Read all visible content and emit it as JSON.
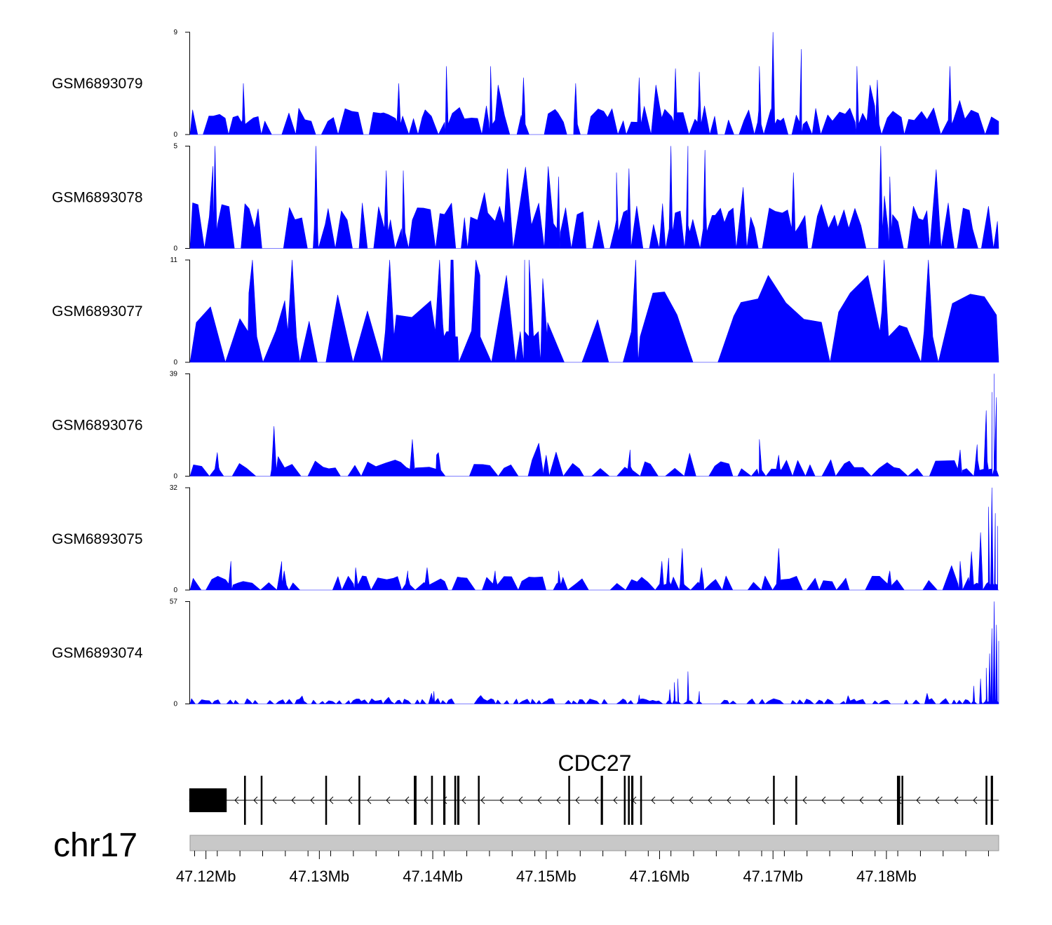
{
  "chart_data": {
    "type": "area",
    "chromosome": "chr17",
    "region_start": 47.1186,
    "region_end": 47.1899,
    "x_units": "Mb",
    "xticks": [
      47.12,
      47.13,
      47.14,
      47.15,
      47.16,
      47.17,
      47.18
    ],
    "xtick_labels": [
      "47.12Mb",
      "47.13Mb",
      "47.14Mb",
      "47.15Mb",
      "47.16Mb",
      "47.17Mb",
      "47.18Mb"
    ],
    "fill_color": "#0000ff",
    "tracks": [
      {
        "name": "GSM6893079",
        "ymin": 0,
        "ymax": 9,
        "ymin_label": "0",
        "ymax_label": "9",
        "baseline": 1.8,
        "spacing": 0.00045,
        "peak_prob": 0.62,
        "tall_prob": 0.03,
        "peaks": [
          [
            47.1233,
            4.5
          ],
          [
            47.137,
            4.5
          ],
          [
            47.1412,
            6
          ],
          [
            47.1451,
            6
          ],
          [
            47.148,
            5
          ],
          [
            47.1526,
            4.5
          ],
          [
            47.1582,
            5
          ],
          [
            47.1614,
            5.8
          ],
          [
            47.1635,
            5.5
          ],
          [
            47.1688,
            6
          ],
          [
            47.17,
            9
          ],
          [
            47.1725,
            7.5
          ],
          [
            47.1774,
            6
          ],
          [
            47.1792,
            4.8
          ],
          [
            47.1856,
            6
          ]
        ]
      },
      {
        "name": "GSM6893078",
        "ymin": 0,
        "ymax": 5,
        "ymin_label": "0",
        "ymax_label": "5",
        "baseline": 1.6,
        "spacing": 0.00045,
        "peak_prob": 0.6,
        "tall_prob": 0.04,
        "peaks": [
          [
            47.1208,
            5
          ],
          [
            47.1297,
            5
          ],
          [
            47.1359,
            3.8
          ],
          [
            47.1374,
            3.8
          ],
          [
            47.1511,
            3.5
          ],
          [
            47.1562,
            3.7
          ],
          [
            47.1573,
            3.9
          ],
          [
            47.161,
            5
          ],
          [
            47.1625,
            5
          ],
          [
            47.164,
            4.8
          ],
          [
            47.1718,
            3.7
          ],
          [
            47.1795,
            5
          ],
          [
            47.1803,
            3.5
          ]
        ]
      },
      {
        "name": "GSM6893077",
        "ymin": 0,
        "ymax": 11,
        "ymin_label": "0",
        "ymax_label": "11",
        "baseline": 5.5,
        "spacing": 0.0011,
        "peak_prob": 0.55,
        "tall_prob": 0.05,
        "peaks": [
          [
            47.1241,
            11
          ],
          [
            47.1276,
            11
          ],
          [
            47.1362,
            11
          ],
          [
            47.1406,
            11
          ],
          [
            47.1416,
            11
          ],
          [
            47.1418,
            11
          ],
          [
            47.1438,
            11
          ],
          [
            47.1481,
            11
          ],
          [
            47.1485,
            11
          ],
          [
            47.1497,
            9
          ],
          [
            47.1579,
            11
          ],
          [
            47.1798,
            11
          ],
          [
            47.1837,
            11
          ]
        ]
      },
      {
        "name": "GSM6893076",
        "ymin": 0,
        "ymax": 39,
        "ymin_label": "0",
        "ymax_label": "39",
        "baseline": 4.5,
        "spacing": 0.0006,
        "peak_prob": 0.55,
        "tall_prob": 0.02,
        "peaks": [
          [
            47.121,
            9
          ],
          [
            47.126,
            19
          ],
          [
            47.1382,
            14
          ],
          [
            47.1405,
            9
          ],
          [
            47.15,
            8
          ],
          [
            47.1574,
            10
          ],
          [
            47.1688,
            14
          ],
          [
            47.1705,
            8
          ],
          [
            47.1865,
            10
          ],
          [
            47.188,
            12
          ],
          [
            47.1888,
            25
          ],
          [
            47.1893,
            32
          ],
          [
            47.1895,
            39
          ],
          [
            47.1897,
            30
          ]
        ]
      },
      {
        "name": "GSM6893075",
        "ymin": 0,
        "ymax": 32,
        "ymin_label": "0",
        "ymax_label": "32",
        "baseline": 3.2,
        "spacing": 0.00055,
        "peak_prob": 0.55,
        "tall_prob": 0.02,
        "peaks": [
          [
            47.1222,
            9
          ],
          [
            47.1269,
            6
          ],
          [
            47.1332,
            7
          ],
          [
            47.1378,
            6
          ],
          [
            47.1395,
            7
          ],
          [
            47.1455,
            6
          ],
          [
            47.1511,
            6
          ],
          [
            47.1602,
            9
          ],
          [
            47.1608,
            10
          ],
          [
            47.162,
            13
          ],
          [
            47.1637,
            7
          ],
          [
            47.1705,
            13
          ],
          [
            47.1803,
            6
          ],
          [
            47.1865,
            9
          ],
          [
            47.1875,
            12
          ],
          [
            47.1883,
            18
          ],
          [
            47.189,
            26
          ],
          [
            47.1893,
            32
          ],
          [
            47.1896,
            24
          ],
          [
            47.1898,
            20
          ]
        ]
      },
      {
        "name": "GSM6893074",
        "ymin": 0,
        "ymax": 57,
        "ymin_label": "0",
        "ymax_label": "57",
        "baseline": 2.2,
        "spacing": 0.00025,
        "peak_prob": 0.5,
        "tall_prob": 0.02,
        "peaks": [
          [
            47.1401,
            7
          ],
          [
            47.1582,
            5
          ],
          [
            47.1609,
            8
          ],
          [
            47.1613,
            12
          ],
          [
            47.1616,
            14
          ],
          [
            47.1625,
            18
          ],
          [
            47.1635,
            7
          ],
          [
            47.1877,
            10
          ],
          [
            47.1883,
            14
          ],
          [
            47.1888,
            20
          ],
          [
            47.1891,
            28
          ],
          [
            47.1893,
            42
          ],
          [
            47.1895,
            57
          ],
          [
            47.1897,
            44
          ],
          [
            47.1899,
            35
          ]
        ]
      }
    ],
    "gene": {
      "name": "CDC27",
      "strand": "-",
      "start": 47.11853,
      "end": 47.1899,
      "exons": [
        [
          47.11853,
          47.12183
        ],
        [
          47.12336,
          47.12352
        ],
        [
          47.12483,
          47.12491
        ],
        [
          47.13052,
          47.13064
        ],
        [
          47.13345,
          47.13357
        ],
        [
          47.13833,
          47.13857
        ],
        [
          47.13985,
          47.14001
        ],
        [
          47.14092,
          47.14112
        ],
        [
          47.1419,
          47.14206
        ],
        [
          47.14215,
          47.14235
        ],
        [
          47.14398,
          47.1441
        ],
        [
          47.15195,
          47.15207
        ],
        [
          47.15481,
          47.15501
        ],
        [
          47.15685,
          47.15697
        ],
        [
          47.15721,
          47.15737
        ],
        [
          47.15749,
          47.15769
        ],
        [
          47.15829,
          47.15841
        ],
        [
          47.17,
          47.17012
        ],
        [
          47.17197,
          47.17213
        ],
        [
          47.18093,
          47.18121
        ],
        [
          47.18133,
          47.18145
        ],
        [
          47.18874,
          47.1889
        ],
        [
          47.1892,
          47.1894
        ]
      ]
    }
  }
}
